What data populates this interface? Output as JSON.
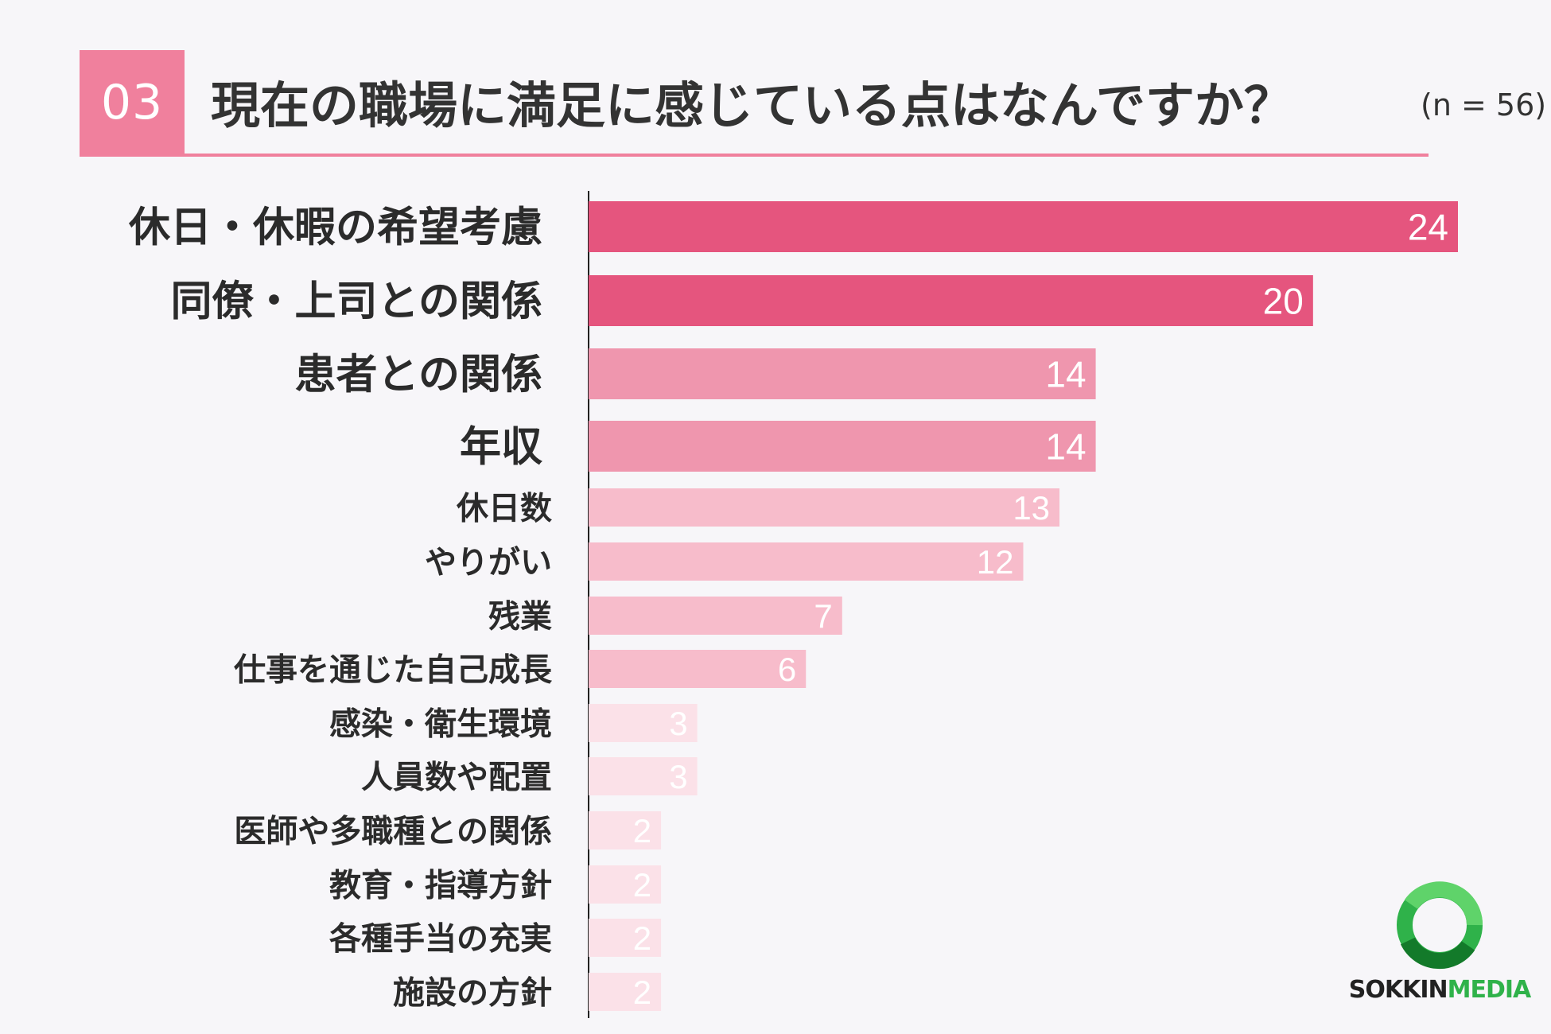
{
  "header": {
    "number": "03",
    "title": "現在の職場に満足に感じている点はなんですか？",
    "sample_size": "(n = 56)"
  },
  "colors": {
    "accent": "#f0809d",
    "tier1": "#e5557e",
    "tier2": "#ef96ae",
    "tier3": "#f7bccb",
    "tier4": "#fbe1e8"
  },
  "chart_data": {
    "type": "bar",
    "orientation": "horizontal",
    "categories": [
      "休日・休暇の希望考慮",
      "同僚・上司との関係",
      "患者との関係",
      "年収",
      "休日数",
      "やりがい",
      "残業",
      "仕事を通じた自己成長",
      "感染・衛生環境",
      "人員数や配置",
      "医師や多職種との関係",
      "教育・指導方針",
      "各種手当の充実",
      "施設の方針"
    ],
    "values": [
      24,
      20,
      14,
      14,
      13,
      12,
      7,
      6,
      3,
      3,
      2,
      2,
      2,
      2
    ],
    "xlim": [
      0,
      24
    ],
    "grid": false,
    "legend": "none"
  },
  "logo": {
    "text_a": "SOKKIN",
    "text_b": "MEDIA",
    "icon": "ring-logo-icon"
  }
}
